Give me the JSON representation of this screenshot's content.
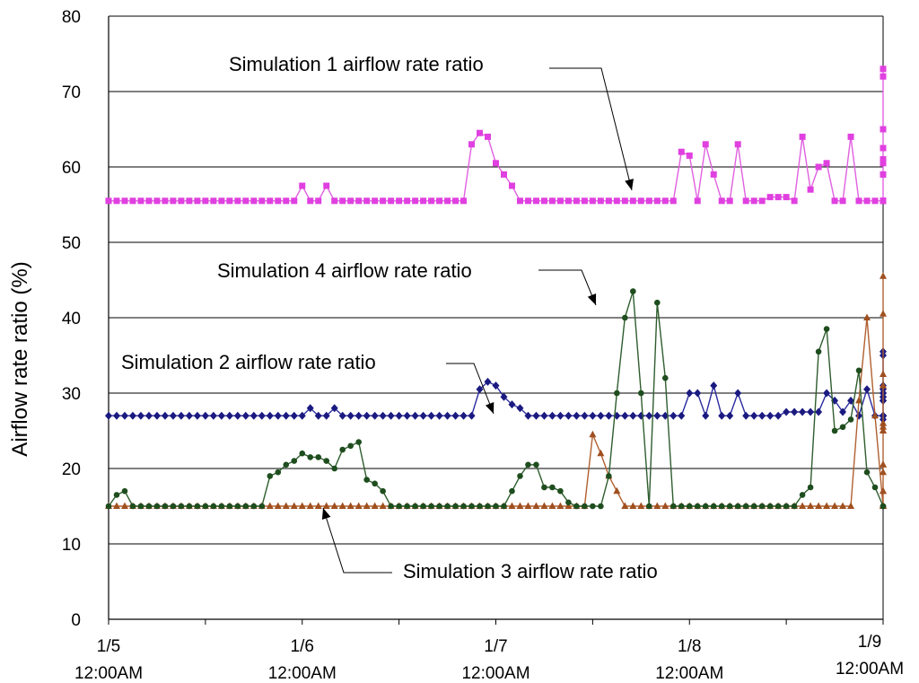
{
  "chart_data": {
    "type": "line",
    "title": "",
    "xlabel": "",
    "ylabel": "Airflow rate ratio (%)",
    "ylim": [
      0,
      80
    ],
    "yticks": [
      0,
      10,
      20,
      30,
      40,
      50,
      60,
      70,
      80
    ],
    "xlim": [
      0,
      4
    ],
    "x_step_days": 0.0416667,
    "grid": "horizontal",
    "xticks": [
      {
        "date": "1/5",
        "time": "12:00AM",
        "x": 0
      },
      {
        "date": "1/6",
        "time": "12:00AM",
        "x": 1
      },
      {
        "date": "1/7",
        "time": "12:00AM",
        "x": 2
      },
      {
        "date": "1/8",
        "time": "12:00AM",
        "x": 3
      },
      {
        "date": "1/9",
        "time": "12:00AM",
        "x": 4
      }
    ],
    "minor_ticks_per_day": 2,
    "series": [
      {
        "name": "Simulation 1 airflow rate ratio",
        "color": "#e040e0",
        "line_color": "#e060e0",
        "marker": "square",
        "values": [
          55.5,
          55.5,
          55.5,
          55.5,
          55.5,
          55.5,
          55.5,
          55.5,
          55.5,
          55.5,
          55.5,
          55.5,
          55.5,
          55.5,
          55.5,
          55.5,
          55.5,
          55.5,
          55.5,
          55.5,
          55.5,
          55.5,
          55.5,
          55.5,
          57.5,
          55.5,
          55.5,
          57.5,
          55.5,
          55.5,
          55.5,
          55.5,
          55.5,
          55.5,
          55.5,
          55.5,
          55.5,
          55.5,
          55.5,
          55.5,
          55.5,
          55.5,
          55.5,
          55.5,
          55.5,
          63,
          64.5,
          64,
          60.5,
          59,
          57.5,
          55.5,
          55.5,
          55.5,
          55.5,
          55.5,
          55.5,
          55.5,
          55.5,
          55.5,
          55.5,
          55.5,
          55.5,
          55.5,
          55.5,
          55.5,
          55.5,
          55.5,
          55.5,
          55.5,
          55.5,
          62,
          61.5,
          55.5,
          63,
          59,
          55.5,
          55.5,
          63,
          55.5,
          55.5,
          55.5,
          56,
          56,
          56,
          55.5,
          64,
          57,
          60,
          60.5,
          55.5,
          55.5,
          64,
          55.5,
          55.5,
          55.5,
          55.5,
          61,
          62.5,
          62.5,
          60.5,
          55.5,
          55.5,
          65,
          55.5,
          55.5,
          72,
          55.5,
          73,
          55.5,
          55.5,
          55.5,
          55.5,
          55.5,
          61,
          61,
          59,
          59
        ]
      },
      {
        "name": "Simulation 2 airflow rate ratio",
        "color": "#1a1a80",
        "line_color": "#2a2aa0",
        "marker": "diamond",
        "values": [
          27,
          27,
          27,
          27,
          27,
          27,
          27,
          27,
          27,
          27,
          27,
          27,
          27,
          27,
          27,
          27,
          27,
          27,
          27,
          27,
          27,
          27,
          27,
          27,
          27,
          28,
          27,
          27,
          28,
          27,
          27,
          27,
          27,
          27,
          27,
          27,
          27,
          27,
          27,
          27,
          27,
          27,
          27,
          27,
          27,
          27,
          30.5,
          31.5,
          31,
          29.5,
          28.5,
          28,
          27,
          27,
          27,
          27,
          27,
          27,
          27,
          27,
          27,
          27,
          27,
          27,
          27,
          27,
          27,
          27,
          27,
          27,
          27,
          27,
          30,
          30,
          27,
          31,
          27,
          27,
          30,
          27,
          27,
          27,
          27,
          27,
          27.5,
          27.5,
          27.5,
          27.5,
          27.5,
          30,
          29,
          27.5,
          29,
          27,
          30.5,
          27,
          27,
          27,
          27,
          27,
          29,
          31,
          30.5,
          29.5,
          27,
          30,
          27,
          29.5,
          35,
          26.5,
          35.5,
          27,
          27,
          27,
          27,
          27,
          27,
          30,
          30,
          29,
          29
        ]
      },
      {
        "name": "Simulation 3 airflow rate ratio",
        "color": "#a05020",
        "line_color": "#b06030",
        "marker": "triangle",
        "values": [
          15,
          15,
          15,
          15,
          15,
          15,
          15,
          15,
          15,
          15,
          15,
          15,
          15,
          15,
          15,
          15,
          15,
          15,
          15,
          15,
          15,
          15,
          15,
          15,
          15,
          15,
          15,
          15,
          15,
          15,
          15,
          15,
          15,
          15,
          15,
          15,
          15,
          15,
          15,
          15,
          15,
          15,
          15,
          15,
          15,
          15,
          15,
          15,
          15,
          15,
          15,
          15,
          15,
          15,
          15,
          15,
          15,
          15,
          15,
          15,
          24.5,
          22,
          19,
          17,
          15,
          15,
          15,
          15,
          15,
          15,
          15,
          15,
          15,
          15,
          15,
          15,
          15,
          15,
          15,
          15,
          15,
          15,
          15,
          15,
          15,
          15,
          15,
          15,
          15,
          15,
          15,
          15,
          15,
          29,
          40,
          27,
          15,
          20.5,
          15,
          31,
          15,
          15,
          15,
          15,
          15,
          15,
          20.5,
          17,
          15,
          15,
          15,
          15,
          15,
          15,
          15,
          15,
          15,
          25,
          25,
          40.5,
          26,
          45.5,
          25,
          25.5,
          26,
          32.5,
          19.5,
          17,
          15,
          15,
          15
        ]
      },
      {
        "name": "Simulation 4 airflow rate ratio",
        "color": "#1e4d1e",
        "line_color": "#2e5d2e",
        "marker": "circle",
        "values": [
          15,
          16.5,
          17,
          15,
          15,
          15,
          15,
          15,
          15,
          15,
          15,
          15,
          15,
          15,
          15,
          15,
          15,
          15,
          15,
          15,
          19,
          19.5,
          20.5,
          21,
          22,
          21.5,
          21.5,
          21,
          20,
          22.5,
          23,
          23.5,
          18.5,
          18,
          17,
          15,
          15,
          15,
          15,
          15,
          15,
          15,
          15,
          15,
          15,
          15,
          15,
          15,
          15,
          15,
          17,
          19,
          20.5,
          20.5,
          17.5,
          17.5,
          17,
          15.5,
          15,
          15,
          15,
          15,
          19,
          30,
          40,
          43.5,
          30,
          15,
          42,
          32,
          15,
          15,
          15,
          15,
          15,
          15,
          15,
          15,
          15,
          15,
          15,
          15,
          15,
          15,
          15,
          15,
          16.5,
          17.5,
          35.5,
          38.5,
          25,
          25.5,
          26.5,
          33,
          19.5,
          17.5,
          15,
          15,
          15
        ]
      }
    ],
    "annotations": [
      {
        "text": "Simulation 1 airflow rate ratio",
        "target_series": 0
      },
      {
        "text": "Simulation 4 airflow rate ratio",
        "target_series": 3
      },
      {
        "text": "Simulation 2 airflow rate ratio",
        "target_series": 1
      },
      {
        "text": "Simulation 3 airflow rate ratio",
        "target_series": 2
      }
    ]
  }
}
